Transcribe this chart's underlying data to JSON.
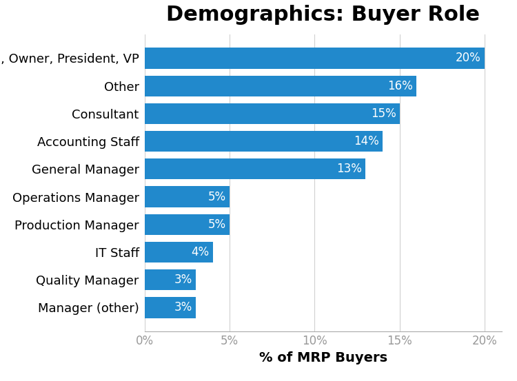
{
  "title": "Demographics: Buyer Role",
  "xlabel": "% of MRP Buyers",
  "categories": [
    "Manager (other)",
    "Quality Manager",
    "IT Staff",
    "Production Manager",
    "Operations Manager",
    "General Manager",
    "Accounting Staff",
    "Consultant",
    "Other",
    "C-level, Owner, President, VP"
  ],
  "values": [
    3,
    3,
    4,
    5,
    5,
    13,
    14,
    15,
    16,
    20
  ],
  "bar_color": "#2189CC",
  "xlim": [
    0,
    21
  ],
  "xticks": [
    0,
    5,
    10,
    15,
    20
  ],
  "xtick_labels": [
    "0%",
    "5%",
    "10%",
    "15%",
    "20%"
  ],
  "title_fontsize": 22,
  "label_fontsize": 12,
  "tick_fontsize": 12,
  "ytick_fontsize": 13,
  "xlabel_fontsize": 14,
  "bar_height": 0.75,
  "background_color": "#ffffff",
  "grid_color": "#d0d0d0",
  "xtick_color": "#999999"
}
